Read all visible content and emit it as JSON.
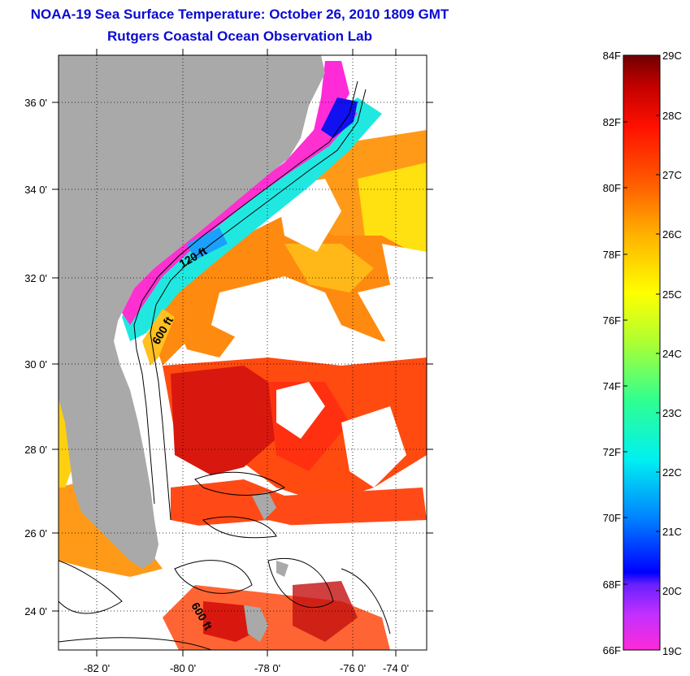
{
  "header": {
    "title_line1": "NOAA-19 Sea Surface Temperature:  October 26, 2010 1809 GMT",
    "title_line2": "Rutgers Coastal Ocean Observation Lab"
  },
  "map": {
    "lat_labels": [
      "36 0'",
      "34 0'",
      "32 0'",
      "30 0'",
      "28 0'",
      "26 0'",
      "24 0'"
    ],
    "lon_labels": [
      "-82 0'",
      "-80 0'",
      "-78 0'",
      "-76 0'",
      "-74 0'"
    ],
    "contours": {
      "c120": "120 ft",
      "c600a": "600 ft",
      "c600b": "600 ft"
    },
    "colors": {
      "land": "#a9a9a9",
      "cloud": "#ffffff",
      "warm": "#d81a10",
      "orange": "#ff6a10"
    }
  },
  "colorbar": {
    "f_labels": [
      "84F",
      "82F",
      "80F",
      "78F",
      "76F",
      "74F",
      "72F",
      "70F",
      "68F",
      "66F"
    ],
    "c_labels": [
      "29C",
      "28C",
      "27C",
      "26C",
      "25C",
      "24C",
      "23C",
      "22C",
      "21C",
      "20C",
      "19C"
    ]
  }
}
